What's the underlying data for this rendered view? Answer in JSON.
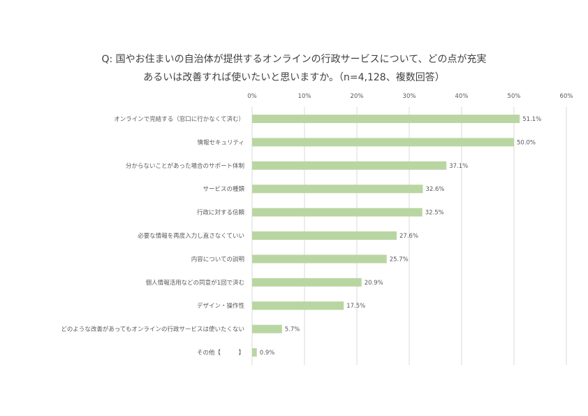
{
  "chart_data": {
    "type": "bar",
    "orientation": "horizontal",
    "title_lines": [
      "Q: 国やお住まいの自治体が提供するオンラインの行政サービスについて、どの点が充実",
      "あるいは改善すれば使いたいと思いますか。（n=4,128、複数回答）"
    ],
    "categories": [
      "オンラインで完結する（窓口に行かなくて済む）",
      "情報セキュリティ",
      "分からないことがあった場合のサポート体制",
      "サービスの種類",
      "行政に対する信頼",
      "必要な情報を再度入力し直さなくていい",
      "内容についての説明",
      "個人情報活用などの同意が1回で済む",
      "デザイン・操作性",
      "どのような改善があってもオンラインの行政サービスは使いたくない",
      "その他【　　　】"
    ],
    "values": [
      51.1,
      50.0,
      37.1,
      32.6,
      32.5,
      27.6,
      25.7,
      20.9,
      17.5,
      5.7,
      0.9
    ],
    "value_labels": [
      "51.1%",
      "50.0%",
      "37.1%",
      "32.6%",
      "32.5%",
      "27.6%",
      "25.7%",
      "20.9%",
      "17.5%",
      "5.7%",
      "0.9%"
    ],
    "x_ticks": [
      "0%",
      "10%",
      "20%",
      "30%",
      "40%",
      "50%",
      "60%"
    ],
    "xlim": [
      0,
      60
    ],
    "grid": true,
    "legend": "none",
    "bar_color": "#b9d6a2",
    "grid_color": "#d9d9d9"
  }
}
